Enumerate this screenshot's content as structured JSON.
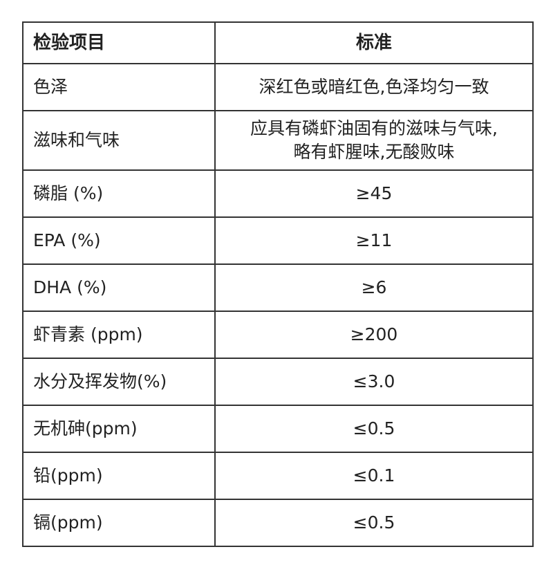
{
  "table": {
    "headers": [
      "检验项目",
      "标准"
    ],
    "rows": [
      {
        "item": "色泽",
        "standard": "深红色或暗红色,色泽均匀一致"
      },
      {
        "item": "滋味和气味",
        "standard": "应具有磷虾油固有的滋味与气味,略有虾腥味,无酸败味"
      },
      {
        "item": "磷脂 (%)",
        "standard": "≥45"
      },
      {
        "item": "EPA (%)",
        "standard": "≥11"
      },
      {
        "item": "DHA (%)",
        "standard": "≥6"
      },
      {
        "item": "虾青素 (ppm)",
        "standard": "≥200"
      },
      {
        "item": "水分及挥发物(%)",
        "standard": "≤3.0"
      },
      {
        "item": "无机砷(ppm)",
        "standard": "≤0.5"
      },
      {
        "item": "铅(ppm)",
        "standard": "≤0.1"
      },
      {
        "item": "镉(ppm)",
        "standard": "≤0.5"
      }
    ]
  }
}
